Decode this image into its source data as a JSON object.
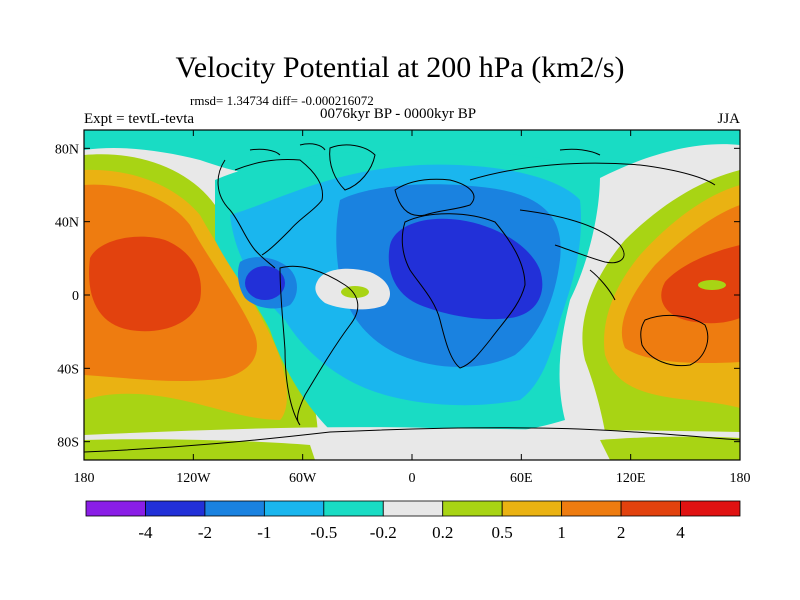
{
  "title": "Velocity Potential at 200 hPa (km2/s)",
  "stats": "rmsd= 1.34734  diff= -0.000216072",
  "left_label": "Expt = tevtL-tevta",
  "center_label": "0076kyr BP - 0000kyr BP",
  "right_label": "JJA",
  "map": {
    "lon_range": [
      -180,
      180
    ],
    "lat_range": [
      -90,
      90
    ],
    "lat_ticks": [
      "80N",
      "40N",
      "0",
      "40S",
      "80S"
    ],
    "lon_ticks": [
      "180",
      "120W",
      "60W",
      "0",
      "60E",
      "120E",
      "180"
    ]
  },
  "colorbar": {
    "labels": [
      "-4",
      "-2",
      "-1",
      "-0.5",
      "-0.2",
      "0.2",
      "0.5",
      "1",
      "2",
      "4"
    ],
    "colors": [
      "#8a1ee6",
      "#2230d8",
      "#1a82e0",
      "#1ab6ee",
      "#19dcc4",
      "#e8e8e8",
      "#a8d414",
      "#eab212",
      "#ee7c10",
      "#e2420e",
      "#e01212"
    ]
  }
}
